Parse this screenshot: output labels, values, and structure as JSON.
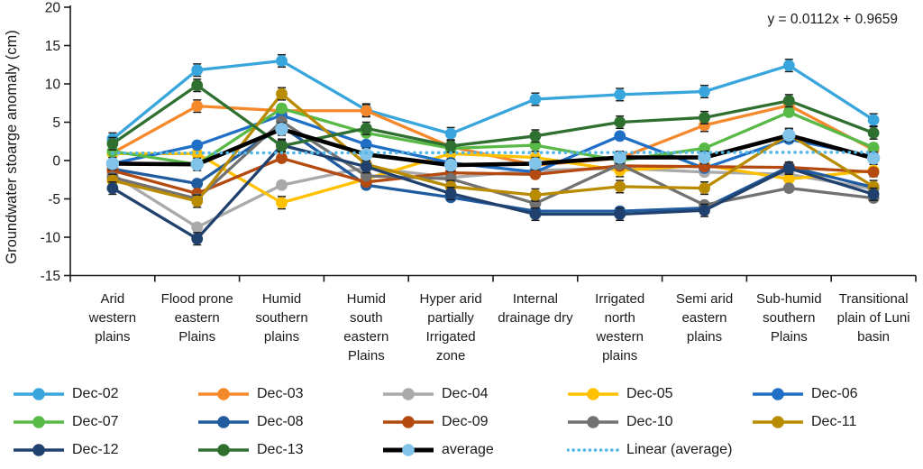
{
  "chart_data": {
    "type": "line",
    "title": "",
    "xlabel": "",
    "ylabel": "Groundwater stoarge anomaly (cm)",
    "annotation": "y = 0.0112x + 0.9659",
    "ylim": [
      -15,
      20
    ],
    "yticks": [
      -15,
      -10,
      -5,
      0,
      5,
      10,
      15,
      20
    ],
    "grid": false,
    "legend_position": "bottom",
    "categories": [
      "Arid western plains",
      "Flood prone eastern Plains",
      "Humid southern plains",
      "Humid south eastern Plains",
      "Hyper arid partially Irrigated zone",
      "Internal drainage dry",
      "Irrigated north western plains",
      "Semi arid eastern plains",
      "Sub-humid southern Plains",
      "Transitional plain of Luni basin"
    ],
    "categories_lines": [
      [
        "Arid",
        "western",
        "plains"
      ],
      [
        "Flood prone",
        "eastern",
        "Plains"
      ],
      [
        "Humid",
        "southern",
        "plains"
      ],
      [
        "Humid",
        "south",
        "eastern",
        "Plains"
      ],
      [
        "Hyper arid",
        "partially",
        "Irrigated",
        "zone"
      ],
      [
        "Internal",
        "drainage dry"
      ],
      [
        "Irrigated",
        "north",
        "western",
        "plains"
      ],
      [
        "Semi arid",
        "eastern",
        "plains"
      ],
      [
        "Sub-humid",
        "southern",
        "Plains"
      ],
      [
        "Transitional",
        "plain of Luni",
        "basin"
      ]
    ],
    "series": [
      {
        "name": "Dec-02",
        "color": "#38A5DC",
        "error": 0.8,
        "values": [
          2.8,
          11.8,
          13.0,
          6.6,
          3.5,
          8.0,
          8.6,
          9.0,
          12.4,
          5.3
        ]
      },
      {
        "name": "Dec-03",
        "color": "#F6882C",
        "error": 0.8,
        "values": [
          1.0,
          7.1,
          6.5,
          6.5,
          1.8,
          -0.6,
          0.3,
          4.6,
          7.2,
          1.4
        ]
      },
      {
        "name": "Dec-04",
        "color": "#A9A9A9",
        "values": [
          -1.8,
          -8.7,
          -3.2,
          -0.9,
          -2.2,
          -1.3,
          -1.0,
          -1.5,
          -1.8,
          -3.7
        ]
      },
      {
        "name": "Dec-05",
        "color": "#FFC000",
        "error": 0.8,
        "values": [
          0.9,
          0.9,
          -5.5,
          -2.4,
          0.9,
          0.4,
          -1.3,
          -0.6,
          -2.4,
          -1.3
        ]
      },
      {
        "name": "Dec-06",
        "color": "#1F6FC6",
        "values": [
          -0.4,
          2.0,
          5.9,
          2.1,
          -0.3,
          -1.5,
          3.2,
          -1.0,
          2.8,
          0.5
        ]
      },
      {
        "name": "Dec-07",
        "color": "#58B947",
        "values": [
          1.2,
          -0.5,
          6.8,
          3.6,
          1.6,
          2.0,
          0.0,
          1.6,
          6.3,
          1.7
        ]
      },
      {
        "name": "Dec-08",
        "color": "#1F5B9E",
        "values": [
          -1.1,
          -3.0,
          4.5,
          -3.2,
          -4.8,
          -6.6,
          -6.6,
          -6.2,
          -0.8,
          -3.5
        ]
      },
      {
        "name": "Dec-09",
        "color": "#B44A0F",
        "values": [
          -1.3,
          -4.3,
          0.3,
          -2.8,
          -1.6,
          -1.8,
          -0.7,
          -0.8,
          -0.9,
          -1.5
        ]
      },
      {
        "name": "Dec-10",
        "color": "#717171",
        "values": [
          -2.2,
          -5.0,
          5.1,
          -2.0,
          -2.4,
          -5.6,
          -0.5,
          -5.8,
          -3.6,
          -4.9
        ]
      },
      {
        "name": "Dec-11",
        "color": "#B98B00",
        "error": 0.8,
        "values": [
          -2.6,
          -5.3,
          8.7,
          -0.5,
          -3.4,
          -4.5,
          -3.4,
          -3.6,
          3.4,
          -3.4
        ]
      },
      {
        "name": "Dec-12",
        "color": "#20406E",
        "error": 0.8,
        "values": [
          -3.6,
          -10.2,
          2.0,
          -0.8,
          -4.3,
          -7.0,
          -7.0,
          -6.5,
          -1.0,
          -4.4
        ]
      },
      {
        "name": "Dec-13",
        "color": "#2F7030",
        "error": 0.8,
        "values": [
          2.2,
          9.8,
          1.9,
          4.2,
          1.9,
          3.2,
          5.0,
          5.6,
          7.8,
          3.6
        ]
      },
      {
        "name": "average",
        "color": "#000000",
        "marker_color": "#82C3EA",
        "thick": true,
        "error": 0.8,
        "values": [
          -0.4,
          -0.5,
          4.1,
          0.8,
          -0.6,
          -0.4,
          0.4,
          0.4,
          3.3,
          0.3
        ]
      },
      {
        "name": "Linear (average)",
        "color": "#52B7E7",
        "style": "dotted",
        "trend": {
          "slope": 0.0112,
          "intercept": 0.9659
        }
      }
    ]
  }
}
